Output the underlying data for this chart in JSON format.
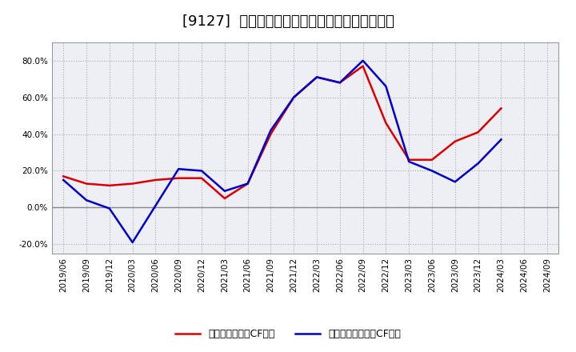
{
  "title": "[9127]  有利子負債キャッシュフロー比率の推移",
  "legend_labels": [
    "有利子負債営業CF比率",
    "有利子負債フリーCF比率"
  ],
  "x_labels": [
    "2019/06",
    "2019/09",
    "2019/12",
    "2020/03",
    "2020/06",
    "2020/09",
    "2020/12",
    "2021/03",
    "2021/06",
    "2021/09",
    "2021/12",
    "2022/03",
    "2022/06",
    "2022/09",
    "2022/12",
    "2023/03",
    "2023/06",
    "2023/09",
    "2023/12",
    "2024/03",
    "2024/06",
    "2024/09"
  ],
  "red_series": [
    0.17,
    0.13,
    0.12,
    0.13,
    0.15,
    0.16,
    0.16,
    0.05,
    0.13,
    0.4,
    0.6,
    0.71,
    0.68,
    0.77,
    0.46,
    0.26,
    0.26,
    0.36,
    0.41,
    0.54,
    null,
    null
  ],
  "blue_series": [
    0.15,
    0.04,
    -0.005,
    -0.19,
    0.01,
    0.21,
    0.2,
    0.09,
    0.13,
    0.42,
    0.6,
    0.71,
    0.68,
    0.8,
    0.66,
    0.25,
    0.2,
    0.14,
    0.24,
    0.37,
    null,
    null
  ],
  "ylim": [
    -0.25,
    0.9
  ],
  "yticks": [
    -0.2,
    0.0,
    0.2,
    0.4,
    0.6,
    0.8
  ],
  "red_color": "#dd0000",
  "blue_color": "#0000cc",
  "bg_color": "#eeeef5",
  "grid_color": "#aaaaaa",
  "zero_line_color": "#888888",
  "title_fontsize": 13,
  "legend_fontsize": 9,
  "tick_fontsize": 7.5
}
